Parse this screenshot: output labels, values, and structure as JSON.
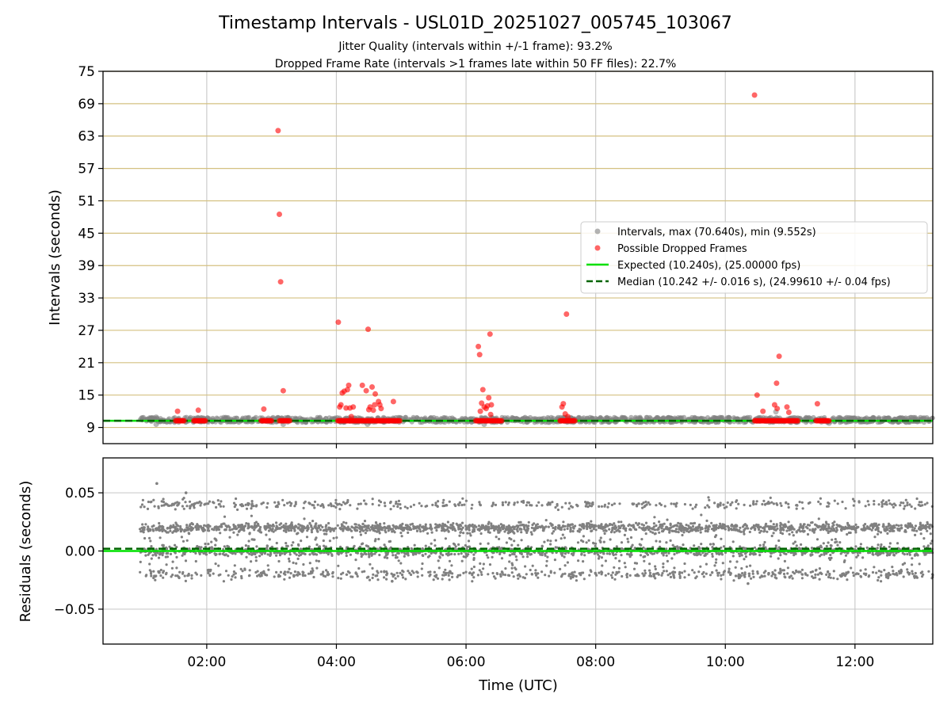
{
  "title": "Timestamp Intervals - USL01D_20251027_005745_103067",
  "subtitle_lines": [
    "Jitter Quality (intervals within +/-1 frame): 93.2%",
    "Dropped Frame Rate (intervals >1 frames late within 50 FF files): 22.7%"
  ],
  "colors": {
    "intervals": "#808080",
    "dropped": "#ff0000",
    "expected": "#00e000",
    "median": "#006400",
    "hgrid_top": "#d4c080",
    "grid": "#cccccc"
  },
  "chart_data": [
    {
      "type": "scatter",
      "panel": "intervals",
      "ylabel": "Intervals (seconds)",
      "xlabel": "",
      "x_unit": "hours (UTC)",
      "xlim": [
        0.4,
        13.2
      ],
      "ylim": [
        6,
        75
      ],
      "yticks": [
        9,
        15,
        21,
        27,
        33,
        39,
        45,
        51,
        57,
        63,
        69,
        75
      ],
      "xticks": [
        2,
        4,
        6,
        8,
        10,
        12
      ],
      "xtick_labels": [
        "02:00",
        "04:00",
        "06:00",
        "08:00",
        "10:00",
        "12:00"
      ],
      "vertical_grid": true,
      "horizontal_grid": true,
      "legend_placement": "center-right",
      "legend": [
        "Intervals, max (70.640s), min (9.552s)",
        "Possible Dropped Frames",
        "Expected (10.240s), (25.00000 fps)",
        "Median (10.242 +/- 0.016 s), (24.99610 +/- 0.04 fps)"
      ],
      "series": [
        {
          "name": "Intervals, max (70.640s), min (9.552s)",
          "style": "band",
          "x_range": [
            0.97,
            13.2
          ],
          "y_range": [
            9.9,
            10.9
          ],
          "extra_points": [
            [
              1.22,
              9.6
            ],
            [
              1.22,
              10.9
            ],
            [
              3.18,
              9.6
            ],
            [
              4.48,
              9.6
            ],
            [
              6.28,
              9.6
            ],
            [
              10.78,
              11.9
            ],
            [
              11.6,
              9.8
            ]
          ]
        },
        {
          "name": "Possible Dropped Frames",
          "style": "points",
          "points": [
            [
              1.55,
              12.0
            ],
            [
              1.87,
              12.2
            ],
            [
              2.88,
              12.4
            ],
            [
              3.1,
              64.0
            ],
            [
              3.12,
              48.5
            ],
            [
              3.14,
              36.0
            ],
            [
              3.18,
              15.8
            ],
            [
              4.03,
              28.5
            ],
            [
              4.05,
              12.8
            ],
            [
              4.07,
              13.2
            ],
            [
              4.09,
              15.4
            ],
            [
              4.12,
              15.7
            ],
            [
              4.15,
              12.6
            ],
            [
              4.17,
              16.0
            ],
            [
              4.19,
              16.8
            ],
            [
              4.21,
              12.6
            ],
            [
              4.23,
              11.0
            ],
            [
              4.26,
              12.8
            ],
            [
              4.4,
              16.8
            ],
            [
              4.46,
              15.8
            ],
            [
              4.49,
              27.2
            ],
            [
              4.5,
              12.3
            ],
            [
              4.52,
              12.8
            ],
            [
              4.55,
              16.5
            ],
            [
              4.57,
              12.2
            ],
            [
              4.59,
              13.2
            ],
            [
              4.6,
              15.2
            ],
            [
              4.65,
              13.8
            ],
            [
              4.67,
              13.2
            ],
            [
              4.69,
              12.5
            ],
            [
              4.88,
              13.8
            ],
            [
              6.19,
              24.0
            ],
            [
              6.21,
              22.5
            ],
            [
              6.22,
              12.0
            ],
            [
              6.24,
              13.5
            ],
            [
              6.26,
              16.0
            ],
            [
              6.28,
              12.8
            ],
            [
              6.31,
              12.5
            ],
            [
              6.33,
              13.0
            ],
            [
              6.35,
              14.5
            ],
            [
              6.37,
              26.3
            ],
            [
              6.38,
              11.4
            ],
            [
              6.39,
              13.2
            ],
            [
              7.48,
              12.8
            ],
            [
              7.5,
              13.4
            ],
            [
              7.53,
              11.5
            ],
            [
              7.55,
              30.0
            ],
            [
              7.57,
              11.0
            ],
            [
              10.45,
              70.6
            ],
            [
              10.49,
              15.0
            ],
            [
              10.58,
              12.0
            ],
            [
              10.76,
              13.2
            ],
            [
              10.79,
              17.2
            ],
            [
              10.8,
              12.5
            ],
            [
              10.83,
              22.2
            ],
            [
              10.95,
              12.8
            ],
            [
              10.98,
              11.8
            ],
            [
              11.42,
              13.4
            ]
          ],
          "baseline_clusters": [
            [
              1.52,
              1.65
            ],
            [
              1.8,
              1.98
            ],
            [
              2.84,
              3.0
            ],
            [
              3.12,
              3.28
            ],
            [
              4.02,
              4.98
            ],
            [
              6.15,
              6.55
            ],
            [
              7.45,
              7.68
            ],
            [
              10.45,
              11.12
            ],
            [
              11.4,
              11.6
            ]
          ],
          "baseline_y": 10.24
        }
      ],
      "lines": [
        {
          "name": "Expected (10.240s), (25.00000 fps)",
          "y": 10.24,
          "style": "solid"
        },
        {
          "name": "Median (10.242 +/- 0.016 s), (24.99610 +/- 0.04 fps)",
          "y": 10.242,
          "style": "dashed"
        }
      ]
    },
    {
      "type": "scatter",
      "panel": "residuals",
      "ylabel": "Residuals (seconds)",
      "xlabel": "Time (UTC)",
      "xlim": [
        0.4,
        13.2
      ],
      "ylim": [
        -0.08,
        0.08
      ],
      "yticks": [
        0.05,
        0.0,
        -0.05
      ],
      "ytick_labels": [
        "0.05",
        "0.00",
        "−0.05"
      ],
      "xticks": [
        2,
        4,
        6,
        8,
        10,
        12
      ],
      "xtick_labels": [
        "02:00",
        "04:00",
        "06:00",
        "08:00",
        "10:00",
        "12:00"
      ],
      "grid": true,
      "series": [
        {
          "name": "",
          "style": "jitter_bands",
          "x_range": [
            0.97,
            13.2
          ],
          "bands": [
            {
              "center": 0.02,
              "spread": 0.002,
              "weight": 0.34
            },
            {
              "center": 0.0,
              "spread": 0.002,
              "weight": 0.3
            },
            {
              "center": -0.02,
              "spread": 0.002,
              "weight": 0.14
            },
            {
              "center": 0.04,
              "spread": 0.002,
              "weight": 0.1
            },
            {
              "center": 0.01,
              "spread": 0.008,
              "weight": 0.06
            },
            {
              "center": -0.01,
              "spread": 0.008,
              "weight": 0.06
            }
          ],
          "outliers": [
            [
              1.23,
              0.058
            ],
            [
              1.68,
              0.05
            ],
            [
              10.35,
              -0.028
            ],
            [
              4.86,
              -0.026
            ]
          ]
        }
      ],
      "lines": [
        {
          "y": 0.0,
          "style": "solid"
        },
        {
          "y": 0.002,
          "style": "dashed"
        }
      ]
    }
  ]
}
